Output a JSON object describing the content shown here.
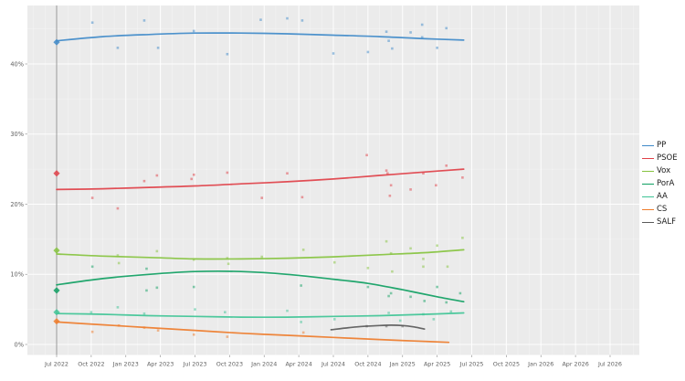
{
  "chart_data": {
    "type": "scatter",
    "title": "",
    "grid": true,
    "legend_position": "right",
    "panel_background": "#ebebeb",
    "gridline_color": "#ffffff",
    "axis_text_color": "#5f5f5f",
    "election_line_color": "#8f8f8f",
    "x_axis": {
      "tick_labels": [
        "Jul 2022",
        "Oct 2022",
        "Jan 2023",
        "Apr 2023",
        "Jul 2023",
        "Oct 2023",
        "Jan 2024",
        "Apr 2024",
        "Jul 2024",
        "Oct 2024",
        "Jan 2025",
        "Apr 2025",
        "Jul 2025",
        "Oct 2025",
        "Jan 2026",
        "Apr 2026",
        "Jul 2026"
      ],
      "tick_interval_months": 3,
      "range_months": [
        -2.5,
        50.5
      ]
    },
    "y_axis": {
      "tick_labels": [
        "0%",
        "10%",
        "20%",
        "30%",
        "40%"
      ],
      "tick_values": [
        0,
        10,
        20,
        30,
        40
      ],
      "minor_values": [
        5,
        15,
        25,
        35,
        45
      ],
      "range": [
        -1.5,
        48.3
      ]
    },
    "election_marker_month": 0,
    "series": [
      {
        "name": "PP",
        "color": "#3f8ac9",
        "election_result_pct": 43.1,
        "trend": [
          [
            0,
            43.3
          ],
          [
            4,
            43.9
          ],
          [
            8,
            44.2
          ],
          [
            12,
            44.4
          ],
          [
            16,
            44.4
          ],
          [
            20,
            44.3
          ],
          [
            24,
            44.1
          ],
          [
            28,
            43.9
          ],
          [
            32,
            43.6
          ],
          [
            35.3,
            43.4
          ]
        ],
        "polls": [
          [
            3.1,
            45.9
          ],
          [
            5.3,
            42.3
          ],
          [
            7.6,
            46.2
          ],
          [
            8.8,
            42.3
          ],
          [
            11.9,
            44.7
          ],
          [
            14.8,
            41.4
          ],
          [
            17.7,
            46.3
          ],
          [
            20,
            46.5
          ],
          [
            21.3,
            46.2
          ],
          [
            24,
            41.5
          ],
          [
            27,
            41.7
          ],
          [
            28.6,
            44.6
          ],
          [
            28.8,
            43.3
          ],
          [
            29.1,
            42.2
          ],
          [
            30.7,
            44.5
          ],
          [
            31.7,
            45.6
          ],
          [
            31.7,
            43.8
          ],
          [
            33,
            42.3
          ],
          [
            33.8,
            45.1
          ]
        ]
      },
      {
        "name": "PSOE",
        "color": "#e04048",
        "election_result_pct": 24.4,
        "trend": [
          [
            0,
            22.1
          ],
          [
            4,
            22.2
          ],
          [
            8,
            22.4
          ],
          [
            12,
            22.6
          ],
          [
            16,
            22.9
          ],
          [
            20,
            23.2
          ],
          [
            24,
            23.6
          ],
          [
            28,
            24.1
          ],
          [
            32,
            24.6
          ],
          [
            35.3,
            25.0
          ]
        ],
        "polls": [
          [
            3.1,
            20.9
          ],
          [
            5.3,
            19.4
          ],
          [
            7.6,
            23.3
          ],
          [
            8.7,
            24.1
          ],
          [
            11.7,
            23.6
          ],
          [
            11.9,
            24.2
          ],
          [
            14.8,
            24.5
          ],
          [
            17.8,
            20.9
          ],
          [
            20,
            24.4
          ],
          [
            21.3,
            21.0
          ],
          [
            26.9,
            27.0
          ],
          [
            28.6,
            24.8
          ],
          [
            28.7,
            24.4
          ],
          [
            29,
            22.7
          ],
          [
            28.9,
            21.2
          ],
          [
            30.7,
            22.1
          ],
          [
            31.8,
            24.4
          ],
          [
            32.9,
            22.7
          ],
          [
            33.8,
            25.5
          ],
          [
            35.2,
            23.8
          ]
        ]
      },
      {
        "name": "Vox",
        "color": "#86c33e",
        "election_result_pct": 13.4,
        "trend": [
          [
            0,
            12.9
          ],
          [
            4,
            12.6
          ],
          [
            8,
            12.4
          ],
          [
            12,
            12.2
          ],
          [
            16,
            12.2
          ],
          [
            20,
            12.3
          ],
          [
            24,
            12.5
          ],
          [
            28,
            12.8
          ],
          [
            32,
            13.1
          ],
          [
            35.3,
            13.5
          ]
        ],
        "polls": [
          [
            5.3,
            12.7
          ],
          [
            5.4,
            11.6
          ],
          [
            8.7,
            13.3
          ],
          [
            11.9,
            12.1
          ],
          [
            14.8,
            12.3
          ],
          [
            14.9,
            11.5
          ],
          [
            17.8,
            12.5
          ],
          [
            21.4,
            13.5
          ],
          [
            24.1,
            11.7
          ],
          [
            27,
            10.9
          ],
          [
            28.6,
            14.7
          ],
          [
            29,
            13.0
          ],
          [
            29.1,
            10.4
          ],
          [
            30.7,
            13.7
          ],
          [
            31.8,
            12.2
          ],
          [
            31.8,
            11.1
          ],
          [
            33,
            14.1
          ],
          [
            33.9,
            11.1
          ],
          [
            35.2,
            15.2
          ]
        ]
      },
      {
        "name": "PorA",
        "color": "#0f9f62",
        "election_result_pct": 7.7,
        "trend": [
          [
            0,
            8.5
          ],
          [
            4,
            9.4
          ],
          [
            8,
            10.0
          ],
          [
            12,
            10.4
          ],
          [
            16,
            10.4
          ],
          [
            20,
            10.0
          ],
          [
            24,
            9.3
          ],
          [
            27,
            8.7
          ],
          [
            30,
            7.8
          ],
          [
            33,
            6.8
          ],
          [
            35.3,
            6.1
          ]
        ],
        "polls": [
          [
            3.1,
            11.1
          ],
          [
            7.8,
            10.8
          ],
          [
            7.8,
            7.7
          ],
          [
            8.7,
            8.1
          ],
          [
            11.9,
            8.2
          ],
          [
            21.2,
            8.4
          ],
          [
            27,
            8.2
          ],
          [
            28.8,
            6.9
          ],
          [
            29,
            7.3
          ],
          [
            30.7,
            6.8
          ],
          [
            31.9,
            6.2
          ],
          [
            33,
            8.2
          ],
          [
            33.8,
            6.0
          ],
          [
            35,
            7.3
          ]
        ]
      },
      {
        "name": "AA",
        "color": "#3ec495",
        "election_result_pct": 4.6,
        "trend": [
          [
            0,
            4.4
          ],
          [
            4,
            4.3
          ],
          [
            8,
            4.1
          ],
          [
            12,
            4.0
          ],
          [
            16,
            3.9
          ],
          [
            20,
            3.9
          ],
          [
            24,
            4.0
          ],
          [
            28,
            4.1
          ],
          [
            32,
            4.3
          ],
          [
            35.3,
            4.5
          ]
        ],
        "polls": [
          [
            3,
            4.6
          ],
          [
            5.3,
            5.3
          ],
          [
            7.6,
            4.4
          ],
          [
            12,
            5.0
          ],
          [
            14.6,
            4.6
          ],
          [
            20,
            4.8
          ],
          [
            21.2,
            3.2
          ],
          [
            24.1,
            3.6
          ],
          [
            28.8,
            4.5
          ],
          [
            29.8,
            3.4
          ],
          [
            31.8,
            4.3
          ],
          [
            32.7,
            3.6
          ],
          [
            34.2,
            4.7
          ]
        ]
      },
      {
        "name": "CS",
        "color": "#ee7c2b",
        "election_result_pct": 3.3,
        "trend": [
          [
            0,
            3.2
          ],
          [
            4,
            2.8
          ],
          [
            8,
            2.4
          ],
          [
            12,
            2.0
          ],
          [
            16,
            1.6
          ],
          [
            20,
            1.3
          ],
          [
            24,
            1.0
          ],
          [
            28,
            0.7
          ],
          [
            31,
            0.5
          ],
          [
            34,
            0.3
          ]
        ],
        "polls": [
          [
            3.1,
            1.8
          ],
          [
            5.4,
            2.7
          ],
          [
            7.6,
            2.4
          ],
          [
            8.8,
            2.0
          ],
          [
            11.9,
            1.4
          ],
          [
            14.8,
            1.1
          ],
          [
            21.4,
            1.7
          ]
        ]
      },
      {
        "name": "SALF",
        "color": "#5a5a5a",
        "election_result_pct": null,
        "trend": [
          [
            23.8,
            2.1
          ],
          [
            26,
            2.5
          ],
          [
            28,
            2.7
          ],
          [
            29,
            2.75
          ],
          [
            30,
            2.7
          ],
          [
            31,
            2.5
          ],
          [
            31.9,
            2.2
          ]
        ],
        "polls": [
          [
            26.9,
            2.6
          ],
          [
            28.6,
            2.6
          ],
          [
            30,
            2.6
          ]
        ]
      }
    ]
  }
}
